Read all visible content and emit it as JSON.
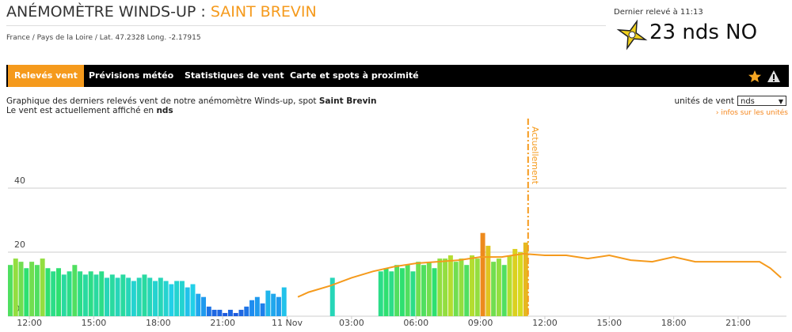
{
  "header": {
    "title": "ANÉMOMÈTRE WINDS-UP : ",
    "spot": "SAINT BREVIN",
    "location": "France / Pays de la Loire / Lat. 47.2328 Long. -2.17915"
  },
  "current": {
    "label": "Dernier relevé à 11:13",
    "value": "23 nds NO"
  },
  "nav": {
    "tabs": [
      "Relevés vent",
      "Prévisions météo",
      "Statistiques de vent",
      "Carte et spots à proximité"
    ]
  },
  "description": {
    "line1": "Graphique des derniers relevés vent de notre anémomètre Winds-up, spot ",
    "spot": "Saint Brevin",
    "line2": "Le vent est actuellement affiché en ",
    "unit": "nds"
  },
  "units": {
    "label": "unités de vent",
    "selected": "nds",
    "link": "› infos sur les unités"
  },
  "chart_data": {
    "type": "bar",
    "xlim": [
      11,
      47.25
    ],
    "ylim": [
      0,
      60
    ],
    "xticks": [
      {
        "value": 12,
        "label": "12:00"
      },
      {
        "value": 15,
        "label": "15:00"
      },
      {
        "value": 18,
        "label": "18:00"
      },
      {
        "value": 21,
        "label": "21:00"
      },
      {
        "value": 24,
        "label": "11 Nov"
      },
      {
        "value": 27,
        "label": "03:00"
      },
      {
        "value": 30,
        "label": "06:00"
      },
      {
        "value": 33,
        "label": "09:00"
      },
      {
        "value": 36,
        "label": "12:00"
      },
      {
        "value": 39,
        "label": "15:00"
      },
      {
        "value": 42,
        "label": "18:00"
      },
      {
        "value": 45,
        "label": "21:00"
      }
    ],
    "yticks": [
      0,
      20,
      40
    ],
    "grid": true,
    "annotation": {
      "text": "Actuellement",
      "x": 35.22
    },
    "color_scale": [
      {
        "value": 0,
        "color": "#1e4fd8"
      },
      {
        "value": 5,
        "color": "#1e8cf0"
      },
      {
        "value": 10,
        "color": "#22d0e8"
      },
      {
        "value": 15,
        "color": "#2ee070"
      },
      {
        "value": 20,
        "color": "#d6dc20"
      },
      {
        "value": 25,
        "color": "#f0a020"
      },
      {
        "value": 30,
        "color": "#e03010"
      }
    ],
    "series": [
      {
        "kind": "bars",
        "x": [
          11,
          11.25,
          11.5,
          11.75,
          12,
          12.25,
          12.5,
          12.75,
          13,
          13.25,
          13.5,
          13.75,
          14,
          14.25,
          14.5,
          14.75,
          15,
          15.25,
          15.5,
          15.75,
          16,
          16.25,
          16.5,
          16.75,
          17,
          17.25,
          17.5,
          17.75,
          18,
          18.25,
          18.5,
          18.75,
          19,
          19.25,
          19.5,
          19.75,
          20,
          20.25,
          20.5,
          20.75,
          21,
          21.25,
          21.5,
          21.75,
          22,
          22.25,
          22.5,
          22.75,
          23,
          23.25,
          23.5,
          23.75,
          26,
          28.25,
          28.5,
          28.75,
          29,
          29.25,
          29.5,
          29.75,
          30,
          30.25,
          30.5,
          30.75,
          31,
          31.25,
          31.5,
          31.75,
          32,
          32.25,
          32.5,
          32.75,
          33,
          33.25,
          33.5,
          33.75,
          34,
          34.25,
          34.5,
          34.75,
          35
        ],
        "values": [
          16,
          18,
          17,
          15,
          17,
          16,
          18,
          15,
          14,
          15,
          13,
          14,
          16,
          14,
          13,
          14,
          13,
          14,
          12,
          13,
          12,
          13,
          12,
          11,
          12,
          13,
          12,
          11,
          12,
          11,
          10,
          11,
          11,
          9,
          10,
          7,
          6,
          3,
          2,
          2,
          1,
          2,
          1,
          2,
          3,
          5,
          6,
          4,
          8,
          7,
          6,
          9,
          12,
          14,
          15,
          14,
          16,
          15,
          16,
          14,
          17,
          16,
          17,
          15,
          18,
          18,
          19,
          17,
          18,
          16,
          19,
          18,
          26,
          22,
          17,
          18,
          16,
          19,
          21,
          20,
          23
        ]
      },
      {
        "kind": "line",
        "color": "#f59a1c",
        "x": [
          24.5,
          25,
          26,
          27,
          28,
          29,
          30,
          31,
          32,
          33,
          34,
          35,
          36,
          37,
          38,
          39,
          40,
          41,
          42,
          43,
          44,
          45,
          46,
          46.5,
          47
        ],
        "values": [
          6,
          7.5,
          9.5,
          12,
          14,
          15.5,
          16.5,
          17,
          17.5,
          18.5,
          18.5,
          19.5,
          19,
          19,
          18,
          19,
          17.5,
          17,
          18.5,
          17,
          17,
          17,
          17,
          15,
          12
        ]
      }
    ]
  }
}
